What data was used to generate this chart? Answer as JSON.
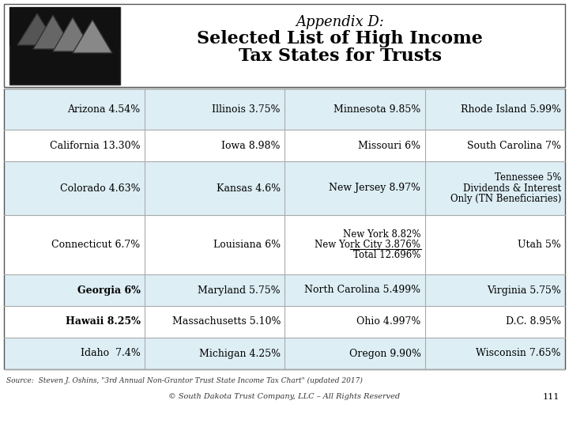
{
  "title_line1": "Appendix D:",
  "title_line2": "Selected List of High Income",
  "title_line3": "Tax States for Trusts",
  "source": "Source:  Steven J. Oshins, \"3rd Annual Non-Grantor Trust State Income Tax Chart\" (updated 2017)",
  "footer": "© South Dakota Trust Company, LLC – All Rights Reserved",
  "page_number": "111",
  "table_data": [
    [
      "Arizona 4.54%",
      "Illinois 3.75%",
      "Minnesota 9.85%",
      "Rhode Island 5.99%"
    ],
    [
      "California 13.30%",
      "Iowa 8.98%",
      "Missouri 6%",
      "South Carolina 7%"
    ],
    [
      "Colorado 4.63%",
      "Kansas 4.6%",
      "New Jersey 8.97%",
      "Tennessee 5%\nDividends & Interest\nOnly (TN Beneficiaries)"
    ],
    [
      "Connecticut 6.7%",
      "Louisiana 6%",
      "New York 8.82%\nNew York City 3.876%\nTotal 12.696%",
      "Utah 5%"
    ],
    [
      "Georgia 6%",
      "Maryland 5.75%",
      "North Carolina 5.499%",
      "Virginia 5.75%"
    ],
    [
      "Hawaii 8.25%",
      "Massachusetts 5.10%",
      "Ohio 4.997%",
      "D.C. 8.95%"
    ],
    [
      "Idaho  7.4%",
      "Michigan 4.25%",
      "Oregon 9.90%",
      "Wisconsin 7.65%"
    ]
  ],
  "ny_city_underline_row": 3,
  "ny_city_underline_col": 2,
  "georgia_bold_row": 4,
  "georgia_bold_col": 0,
  "hawaii_bold_row": 5,
  "hawaii_bold_col": 0,
  "header_bg": "#ffffff",
  "row_bg_even": "#ddeef5",
  "row_bg_odd": "#ffffff",
  "grid_color": "#aaaaaa",
  "text_color": "#000000",
  "background_color": "#ffffff"
}
